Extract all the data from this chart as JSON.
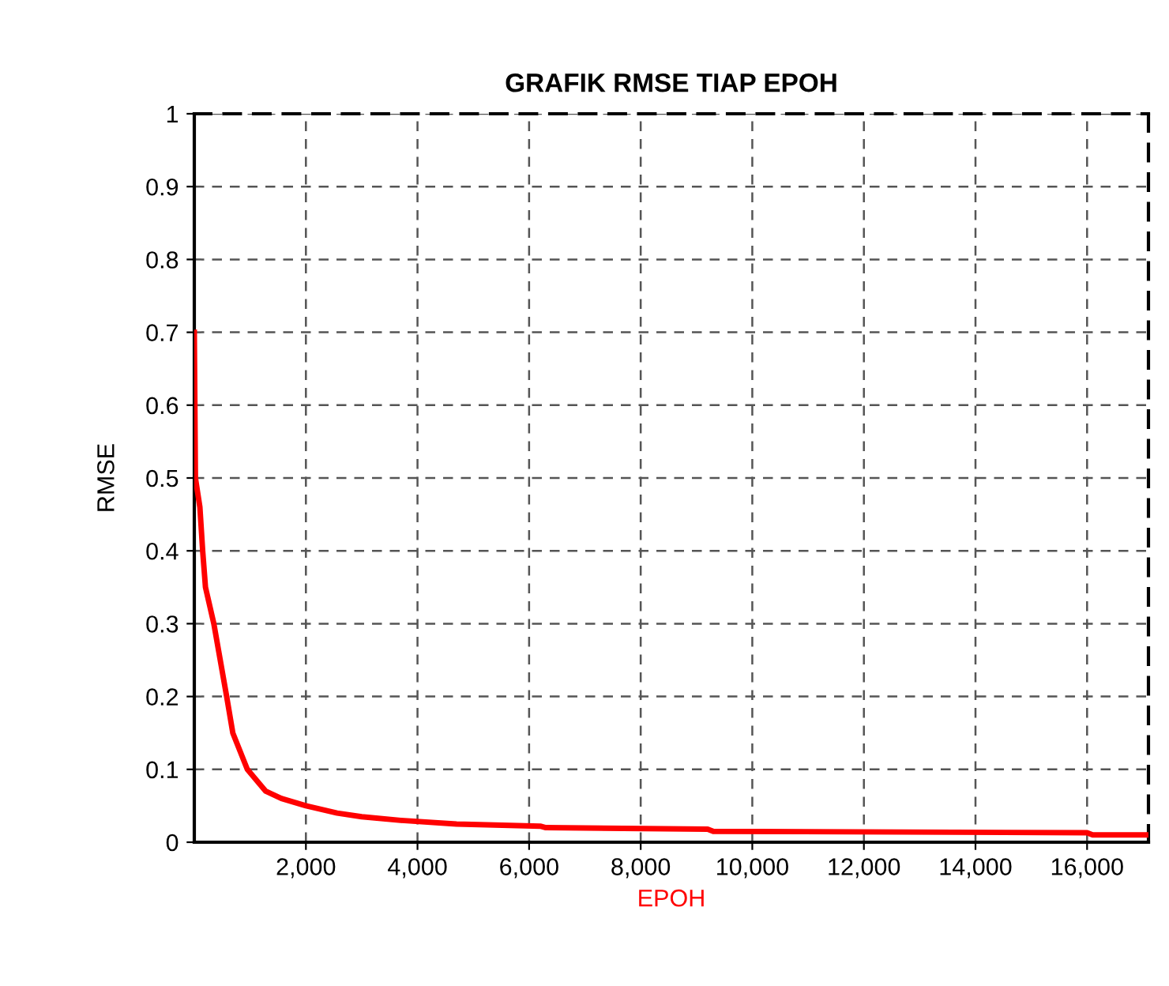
{
  "chart_data": {
    "type": "line",
    "title": "GRAFIK RMSE TIAP EPOH",
    "xlabel": "EPOH",
    "ylabel": "RMSE",
    "x": [
      0,
      20,
      60,
      100,
      150,
      200,
      350,
      580,
      690,
      950,
      1280,
      1560,
      2000,
      2560,
      3000,
      3700,
      4700,
      6200,
      6300,
      9200,
      9300,
      16000,
      16100,
      17100
    ],
    "series": [
      {
        "color": "#ff0000",
        "values": [
          0.7,
          0.5,
          0.48,
          0.46,
          0.4,
          0.35,
          0.3,
          0.2,
          0.15,
          0.1,
          0.07,
          0.06,
          0.05,
          0.04,
          0.035,
          0.03,
          0.025,
          0.022,
          0.02,
          0.018,
          0.015,
          0.013,
          0.01,
          0.01
        ]
      }
    ],
    "xlim": [
      0,
      17100
    ],
    "ylim": [
      0,
      1
    ],
    "xticks": [
      {
        "value": 2000,
        "label": "2,000"
      },
      {
        "value": 4000,
        "label": "4,000"
      },
      {
        "value": 6000,
        "label": "6,000"
      },
      {
        "value": 8000,
        "label": "8,000"
      },
      {
        "value": 10000,
        "label": "10,000"
      },
      {
        "value": 12000,
        "label": "12,000"
      },
      {
        "value": 14000,
        "label": "14,000"
      },
      {
        "value": 16000,
        "label": "16,000"
      }
    ],
    "yticks": [
      0,
      0.1,
      0.2,
      0.3,
      0.4,
      0.5,
      0.6,
      0.7,
      0.8,
      0.9,
      1
    ],
    "grid": true,
    "line_style": "solid"
  }
}
